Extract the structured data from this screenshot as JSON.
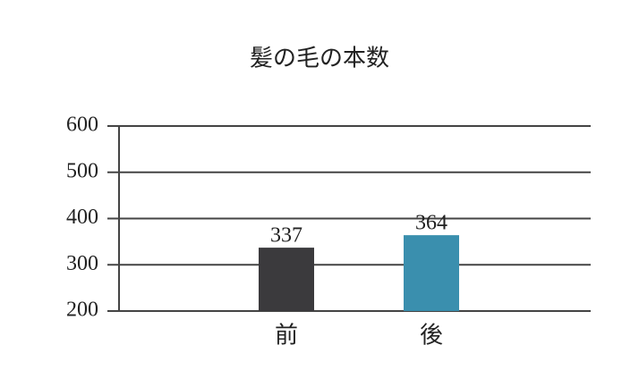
{
  "chart_data": {
    "type": "bar",
    "title": "髪の毛の本数",
    "categories": [
      "前",
      "後"
    ],
    "values": [
      337,
      364
    ],
    "colors": [
      "#3b3a3d",
      "#3a8fae"
    ],
    "ylim": [
      200,
      600
    ],
    "yticks": [
      200,
      300,
      400,
      500,
      600
    ],
    "grid": true
  }
}
